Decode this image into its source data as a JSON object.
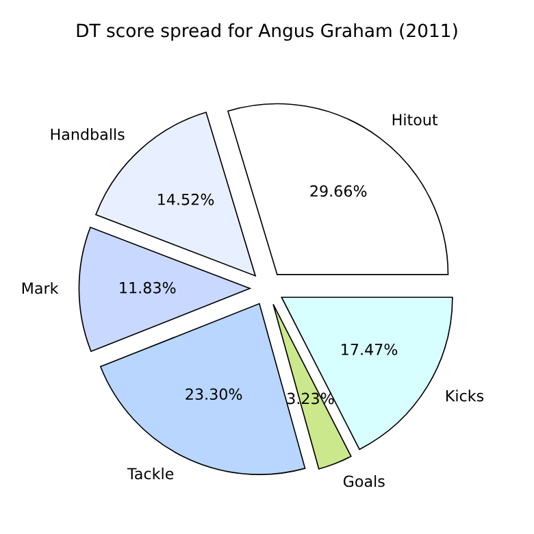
{
  "chart_data": {
    "type": "pie",
    "title": "DT score spread for Angus Graham (2011)",
    "categories": [
      "Hitout",
      "Handballs",
      "Mark",
      "Tackle",
      "Goals",
      "Kicks"
    ],
    "values": [
      29.66,
      14.52,
      11.83,
      23.3,
      3.23,
      17.47
    ],
    "value_labels": [
      "29.66%",
      "14.52%",
      "11.83%",
      "23.30%",
      "3.23%",
      "17.47%"
    ],
    "colors": [
      "#ffffff",
      "#e8f0ff",
      "#c8d8ff",
      "#b8d6ff",
      "#cbe98c",
      "#d8ffff"
    ],
    "legend": false
  }
}
